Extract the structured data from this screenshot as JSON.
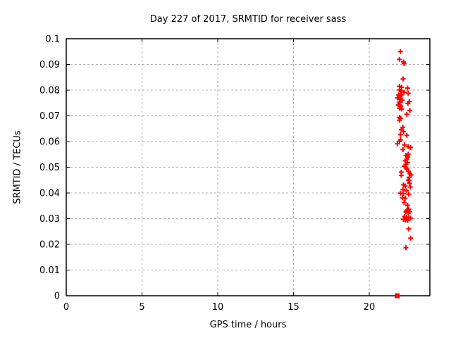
{
  "figure": {
    "background": "#ffffff",
    "text_color": "#000000"
  },
  "chart_data": {
    "type": "scatter",
    "title": "Day 227 of 2017, SRMTID for receiver sass",
    "xlabel": "GPS time / hours",
    "ylabel": "SRMTID / TECUs",
    "xlim": [
      0,
      24
    ],
    "ylim": [
      0,
      0.1
    ],
    "grid": true,
    "grid_color": "#b0b0b0",
    "border_color": "#000000",
    "legend": "none",
    "xticks": [
      {
        "v": 0,
        "label": "0"
      },
      {
        "v": 5,
        "label": "5"
      },
      {
        "v": 10,
        "label": "10"
      },
      {
        "v": 15,
        "label": "15"
      },
      {
        "v": 20,
        "label": "20"
      }
    ],
    "yticks": [
      {
        "v": 0,
        "label": "0"
      },
      {
        "v": 0.01,
        "label": "0.01"
      },
      {
        "v": 0.02,
        "label": "0.02"
      },
      {
        "v": 0.03,
        "label": "0.03"
      },
      {
        "v": 0.04,
        "label": "0.04"
      },
      {
        "v": 0.05,
        "label": "0.05"
      },
      {
        "v": 0.06,
        "label": "0.06"
      },
      {
        "v": 0.07,
        "label": "0.07"
      },
      {
        "v": 0.08,
        "label": "0.08"
      },
      {
        "v": 0.09,
        "label": "0.09"
      },
      {
        "v": 0.1,
        "label": "0.1"
      }
    ],
    "series": [
      {
        "name": "srmtid-points",
        "marker": "plus",
        "color": "#ff0000",
        "points": [
          [
            22.06,
            0.095
          ],
          [
            21.99,
            0.092
          ],
          [
            22.26,
            0.091
          ],
          [
            22.3,
            0.0903
          ],
          [
            22.23,
            0.0843
          ],
          [
            21.99,
            0.0815
          ],
          [
            22.14,
            0.0811
          ],
          [
            22.53,
            0.0808
          ],
          [
            22.0,
            0.0801
          ],
          [
            22.09,
            0.0797
          ],
          [
            22.3,
            0.0792
          ],
          [
            22.57,
            0.0788
          ],
          [
            22.12,
            0.0784
          ],
          [
            21.94,
            0.0781
          ],
          [
            22.04,
            0.0779
          ],
          [
            22.1,
            0.0778
          ],
          [
            21.86,
            0.077
          ],
          [
            22.06,
            0.0764
          ],
          [
            22.17,
            0.0761
          ],
          [
            22.64,
            0.0755
          ],
          [
            21.99,
            0.0753
          ],
          [
            22.55,
            0.0748
          ],
          [
            21.91,
            0.0742
          ],
          [
            22.02,
            0.0741
          ],
          [
            22.09,
            0.0738
          ],
          [
            22.06,
            0.0737
          ],
          [
            22.01,
            0.0729
          ],
          [
            22.14,
            0.0726
          ],
          [
            22.68,
            0.0721
          ],
          [
            22.48,
            0.0706
          ],
          [
            22.0,
            0.0694
          ],
          [
            22.06,
            0.069
          ],
          [
            21.99,
            0.0683
          ],
          [
            22.22,
            0.0655
          ],
          [
            22.11,
            0.0646
          ],
          [
            22.26,
            0.0639
          ],
          [
            22.06,
            0.0627
          ],
          [
            22.48,
            0.0624
          ],
          [
            22.06,
            0.0607
          ],
          [
            22.0,
            0.0601
          ],
          [
            21.86,
            0.0591
          ],
          [
            22.33,
            0.0587
          ],
          [
            22.57,
            0.058
          ],
          [
            22.73,
            0.0577
          ],
          [
            22.22,
            0.0569
          ],
          [
            22.57,
            0.0551
          ],
          [
            22.42,
            0.0546
          ],
          [
            22.53,
            0.0543
          ],
          [
            22.53,
            0.0539
          ],
          [
            22.48,
            0.0532
          ],
          [
            22.37,
            0.0525
          ],
          [
            22.53,
            0.0518
          ],
          [
            22.42,
            0.0511
          ],
          [
            22.3,
            0.0504
          ],
          [
            22.42,
            0.05
          ],
          [
            22.48,
            0.0493
          ],
          [
            22.6,
            0.0484
          ],
          [
            22.11,
            0.0481
          ],
          [
            22.68,
            0.0475
          ],
          [
            22.76,
            0.047
          ],
          [
            22.11,
            0.0468
          ],
          [
            22.64,
            0.0461
          ],
          [
            22.63,
            0.045
          ],
          [
            22.57,
            0.0449
          ],
          [
            22.66,
            0.0437
          ],
          [
            22.26,
            0.0432
          ],
          [
            22.37,
            0.0427
          ],
          [
            22.71,
            0.0423
          ],
          [
            22.22,
            0.0413
          ],
          [
            22.45,
            0.0409
          ],
          [
            22.06,
            0.0399
          ],
          [
            22.25,
            0.0397
          ],
          [
            22.6,
            0.0395
          ],
          [
            22.19,
            0.0381
          ],
          [
            22.37,
            0.0379
          ],
          [
            22.3,
            0.0363
          ],
          [
            22.53,
            0.0352
          ],
          [
            22.6,
            0.0337
          ],
          [
            22.55,
            0.0335
          ],
          [
            22.5,
            0.0333
          ],
          [
            22.49,
            0.0331
          ],
          [
            22.68,
            0.0327
          ],
          [
            22.42,
            0.0326
          ],
          [
            22.57,
            0.0324
          ],
          [
            22.33,
            0.0309
          ],
          [
            22.45,
            0.0306
          ],
          [
            22.6,
            0.0304
          ],
          [
            22.73,
            0.0302
          ],
          [
            22.26,
            0.0297
          ],
          [
            22.39,
            0.0295
          ],
          [
            22.53,
            0.0293
          ],
          [
            22.6,
            0.026
          ],
          [
            22.73,
            0.0224
          ],
          [
            22.42,
            0.0187
          ]
        ]
      },
      {
        "name": "zero-marker",
        "marker": "filled-square",
        "color": "#ff0000",
        "points": [
          [
            21.85,
            0.0
          ]
        ]
      }
    ]
  }
}
